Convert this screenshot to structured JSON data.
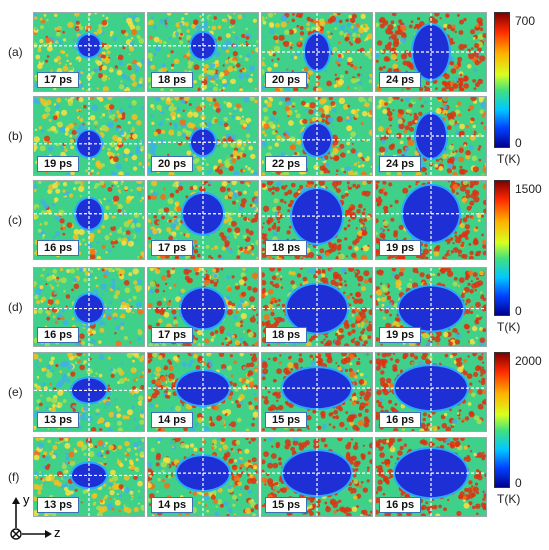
{
  "rows": [
    {
      "label": "(a)",
      "panels": [
        {
          "time": "17 ps",
          "rx": 11,
          "ry": 11,
          "cy": 0.42,
          "hot": 0.1
        },
        {
          "time": "18 ps",
          "rx": 12,
          "ry": 13,
          "cy": 0.42,
          "hot": 0.15
        },
        {
          "time": "20 ps",
          "rx": 12,
          "ry": 18,
          "cy": 0.5,
          "hot": 0.35
        },
        {
          "time": "24 ps",
          "rx": 18,
          "ry": 27,
          "cy": 0.5,
          "hot": 0.75
        }
      ]
    },
    {
      "label": "(b)",
      "panels": [
        {
          "time": "19 ps",
          "rx": 12,
          "ry": 13,
          "cy": 0.6,
          "hot": 0.12
        },
        {
          "time": "20 ps",
          "rx": 12,
          "ry": 13,
          "cy": 0.58,
          "hot": 0.15
        },
        {
          "time": "22 ps",
          "rx": 14,
          "ry": 16,
          "cy": 0.55,
          "hot": 0.25
        },
        {
          "time": "24 ps",
          "rx": 15,
          "ry": 22,
          "cy": 0.5,
          "hot": 0.45
        }
      ]
    },
    {
      "label": "(c)",
      "panels": [
        {
          "time": "16 ps",
          "rx": 13,
          "ry": 15,
          "cy": 0.42,
          "hot": 0.1
        },
        {
          "time": "17 ps",
          "rx": 20,
          "ry": 20,
          "cy": 0.42,
          "hot": 0.4
        },
        {
          "time": "18 ps",
          "rx": 25,
          "ry": 27,
          "cy": 0.45,
          "hot": 0.75
        },
        {
          "time": "19 ps",
          "rx": 28,
          "ry": 28,
          "cy": 0.42,
          "hot": 0.8
        }
      ]
    },
    {
      "label": "(d)",
      "panels": [
        {
          "time": "16 ps",
          "rx": 14,
          "ry": 14,
          "cy": 0.52,
          "hot": 0.1
        },
        {
          "time": "17 ps",
          "rx": 22,
          "ry": 20,
          "cy": 0.52,
          "hot": 0.4
        },
        {
          "time": "18 ps",
          "rx": 30,
          "ry": 24,
          "cy": 0.52,
          "hot": 0.7
        },
        {
          "time": "19 ps",
          "rx": 32,
          "ry": 22,
          "cy": 0.52,
          "hot": 0.6
        }
      ]
    },
    {
      "label": "(e)",
      "panels": [
        {
          "time": "13 ps",
          "rx": 17,
          "ry": 12,
          "cy": 0.48,
          "hot": 0.1
        },
        {
          "time": "14 ps",
          "rx": 26,
          "ry": 17,
          "cy": 0.45,
          "hot": 0.4
        },
        {
          "time": "15 ps",
          "rx": 34,
          "ry": 20,
          "cy": 0.45,
          "hot": 0.8
        },
        {
          "time": "16 ps",
          "rx": 36,
          "ry": 22,
          "cy": 0.45,
          "hot": 0.8
        }
      ]
    },
    {
      "label": "(f)",
      "panels": [
        {
          "time": "13 ps",
          "rx": 17,
          "ry": 12,
          "cy": 0.48,
          "hot": 0.1
        },
        {
          "time": "14 ps",
          "rx": 26,
          "ry": 17,
          "cy": 0.45,
          "hot": 0.4
        },
        {
          "time": "15 ps",
          "rx": 34,
          "ry": 22,
          "cy": 0.45,
          "hot": 0.8
        },
        {
          "time": "16 ps",
          "rx": 36,
          "ry": 24,
          "cy": 0.45,
          "hot": 0.85
        }
      ]
    }
  ],
  "colorbars": [
    {
      "max": "700",
      "min": "0",
      "unit": "T(K)"
    },
    {
      "max": "1500",
      "min": "0",
      "unit": "T(K)"
    },
    {
      "max": "2000",
      "min": "0",
      "unit": "T(K)"
    }
  ],
  "axes": {
    "y": "y",
    "z": "z"
  },
  "colors": {
    "cold": "#1f2fd6",
    "cold_edge": "#2aa8ff",
    "hot": "#e03010",
    "warm": "#f7c020",
    "field_a": "#3fd08a",
    "field_b": "#a8e050"
  }
}
